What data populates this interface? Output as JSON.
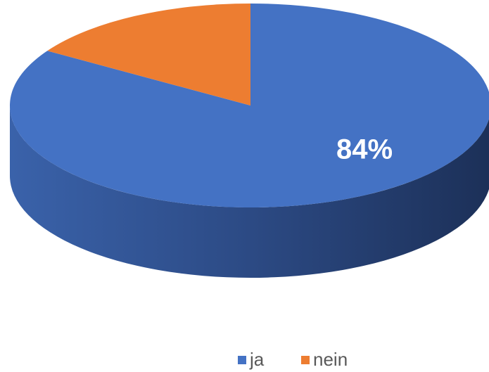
{
  "chart_data": {
    "type": "pie",
    "categories": [
      "ja",
      "nein"
    ],
    "values": [
      84,
      16
    ],
    "value_labels": [
      "84%",
      null
    ],
    "colors": [
      "#4472c4",
      "#ed7d31"
    ],
    "legend": "bottom"
  }
}
